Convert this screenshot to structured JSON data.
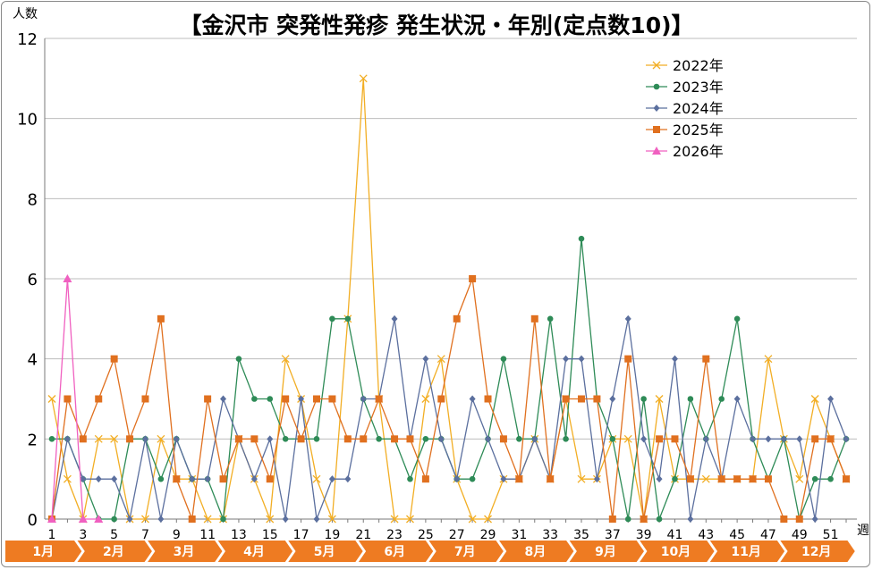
{
  "chart_data": {
    "type": "line",
    "title": "【金沢市 突発性発疹 発生状況・年別(定点数10)】",
    "ylabel": "人数",
    "xlabel": "週",
    "ylim": [
      0,
      12
    ],
    "yticks": [
      "0",
      "2",
      "4",
      "6",
      "8",
      "10",
      "12"
    ],
    "xticks": [
      "1",
      "3",
      "5",
      "7",
      "9",
      "11",
      "13",
      "15",
      "17",
      "19",
      "21",
      "23",
      "25",
      "27",
      "29",
      "31",
      "33",
      "35",
      "37",
      "39",
      "41",
      "43",
      "45",
      "47",
      "49",
      "51"
    ],
    "months": [
      "1月",
      "2月",
      "3月",
      "4月",
      "5月",
      "6月",
      "7月",
      "8月",
      "9月",
      "10月",
      "11月",
      "12月"
    ],
    "grid": "horizontal",
    "legend_position": "top-right",
    "series": [
      {
        "name": "2022年",
        "color": "#F2AE24",
        "marker": "x",
        "values": [
          3,
          1,
          0,
          2,
          2,
          0,
          0,
          2,
          1,
          1,
          0,
          0,
          2,
          1,
          0,
          4,
          3,
          1,
          0,
          5,
          11,
          3,
          0,
          0,
          3,
          4,
          1,
          0,
          0,
          1,
          1,
          2,
          1,
          3,
          1,
          1,
          2,
          2,
          0,
          3,
          1,
          1,
          1,
          1,
          1,
          1,
          4,
          2,
          1,
          3,
          2,
          1
        ]
      },
      {
        "name": "2023年",
        "color": "#2E8B57",
        "marker": "circle",
        "values": [
          2,
          2,
          1,
          0,
          0,
          2,
          2,
          1,
          2,
          1,
          1,
          0,
          4,
          3,
          3,
          2,
          2,
          2,
          5,
          5,
          3,
          2,
          2,
          1,
          2,
          2,
          1,
          1,
          2,
          4,
          2,
          2,
          5,
          2,
          7,
          3,
          2,
          0,
          3,
          0,
          1,
          3,
          2,
          3,
          5,
          2,
          1,
          2,
          0,
          1,
          1,
          2
        ]
      },
      {
        "name": "2024年",
        "color": "#5B6F9E",
        "marker": "diamond",
        "values": [
          0,
          2,
          1,
          1,
          1,
          0,
          2,
          0,
          2,
          1,
          1,
          3,
          2,
          1,
          2,
          0,
          3,
          0,
          1,
          1,
          3,
          3,
          5,
          2,
          4,
          2,
          1,
          3,
          2,
          1,
          1,
          2,
          1,
          4,
          4,
          1,
          3,
          5,
          2,
          1,
          4,
          0,
          2,
          1,
          3,
          2,
          2,
          2,
          2,
          0,
          3,
          2
        ]
      },
      {
        "name": "2025年",
        "color": "#E0701F",
        "marker": "square",
        "values": [
          0,
          3,
          2,
          3,
          4,
          2,
          3,
          5,
          1,
          0,
          3,
          1,
          2,
          2,
          1,
          3,
          2,
          3,
          3,
          2,
          2,
          3,
          2,
          2,
          1,
          3,
          5,
          6,
          3,
          2,
          1,
          5,
          1,
          3,
          3,
          3,
          0,
          4,
          0,
          2,
          2,
          1,
          4,
          1,
          1,
          1,
          1,
          0,
          0,
          2,
          2,
          1
        ]
      },
      {
        "name": "2026年",
        "color": "#F060C0",
        "marker": "triangle",
        "values": [
          0,
          6,
          0,
          0
        ]
      }
    ]
  }
}
